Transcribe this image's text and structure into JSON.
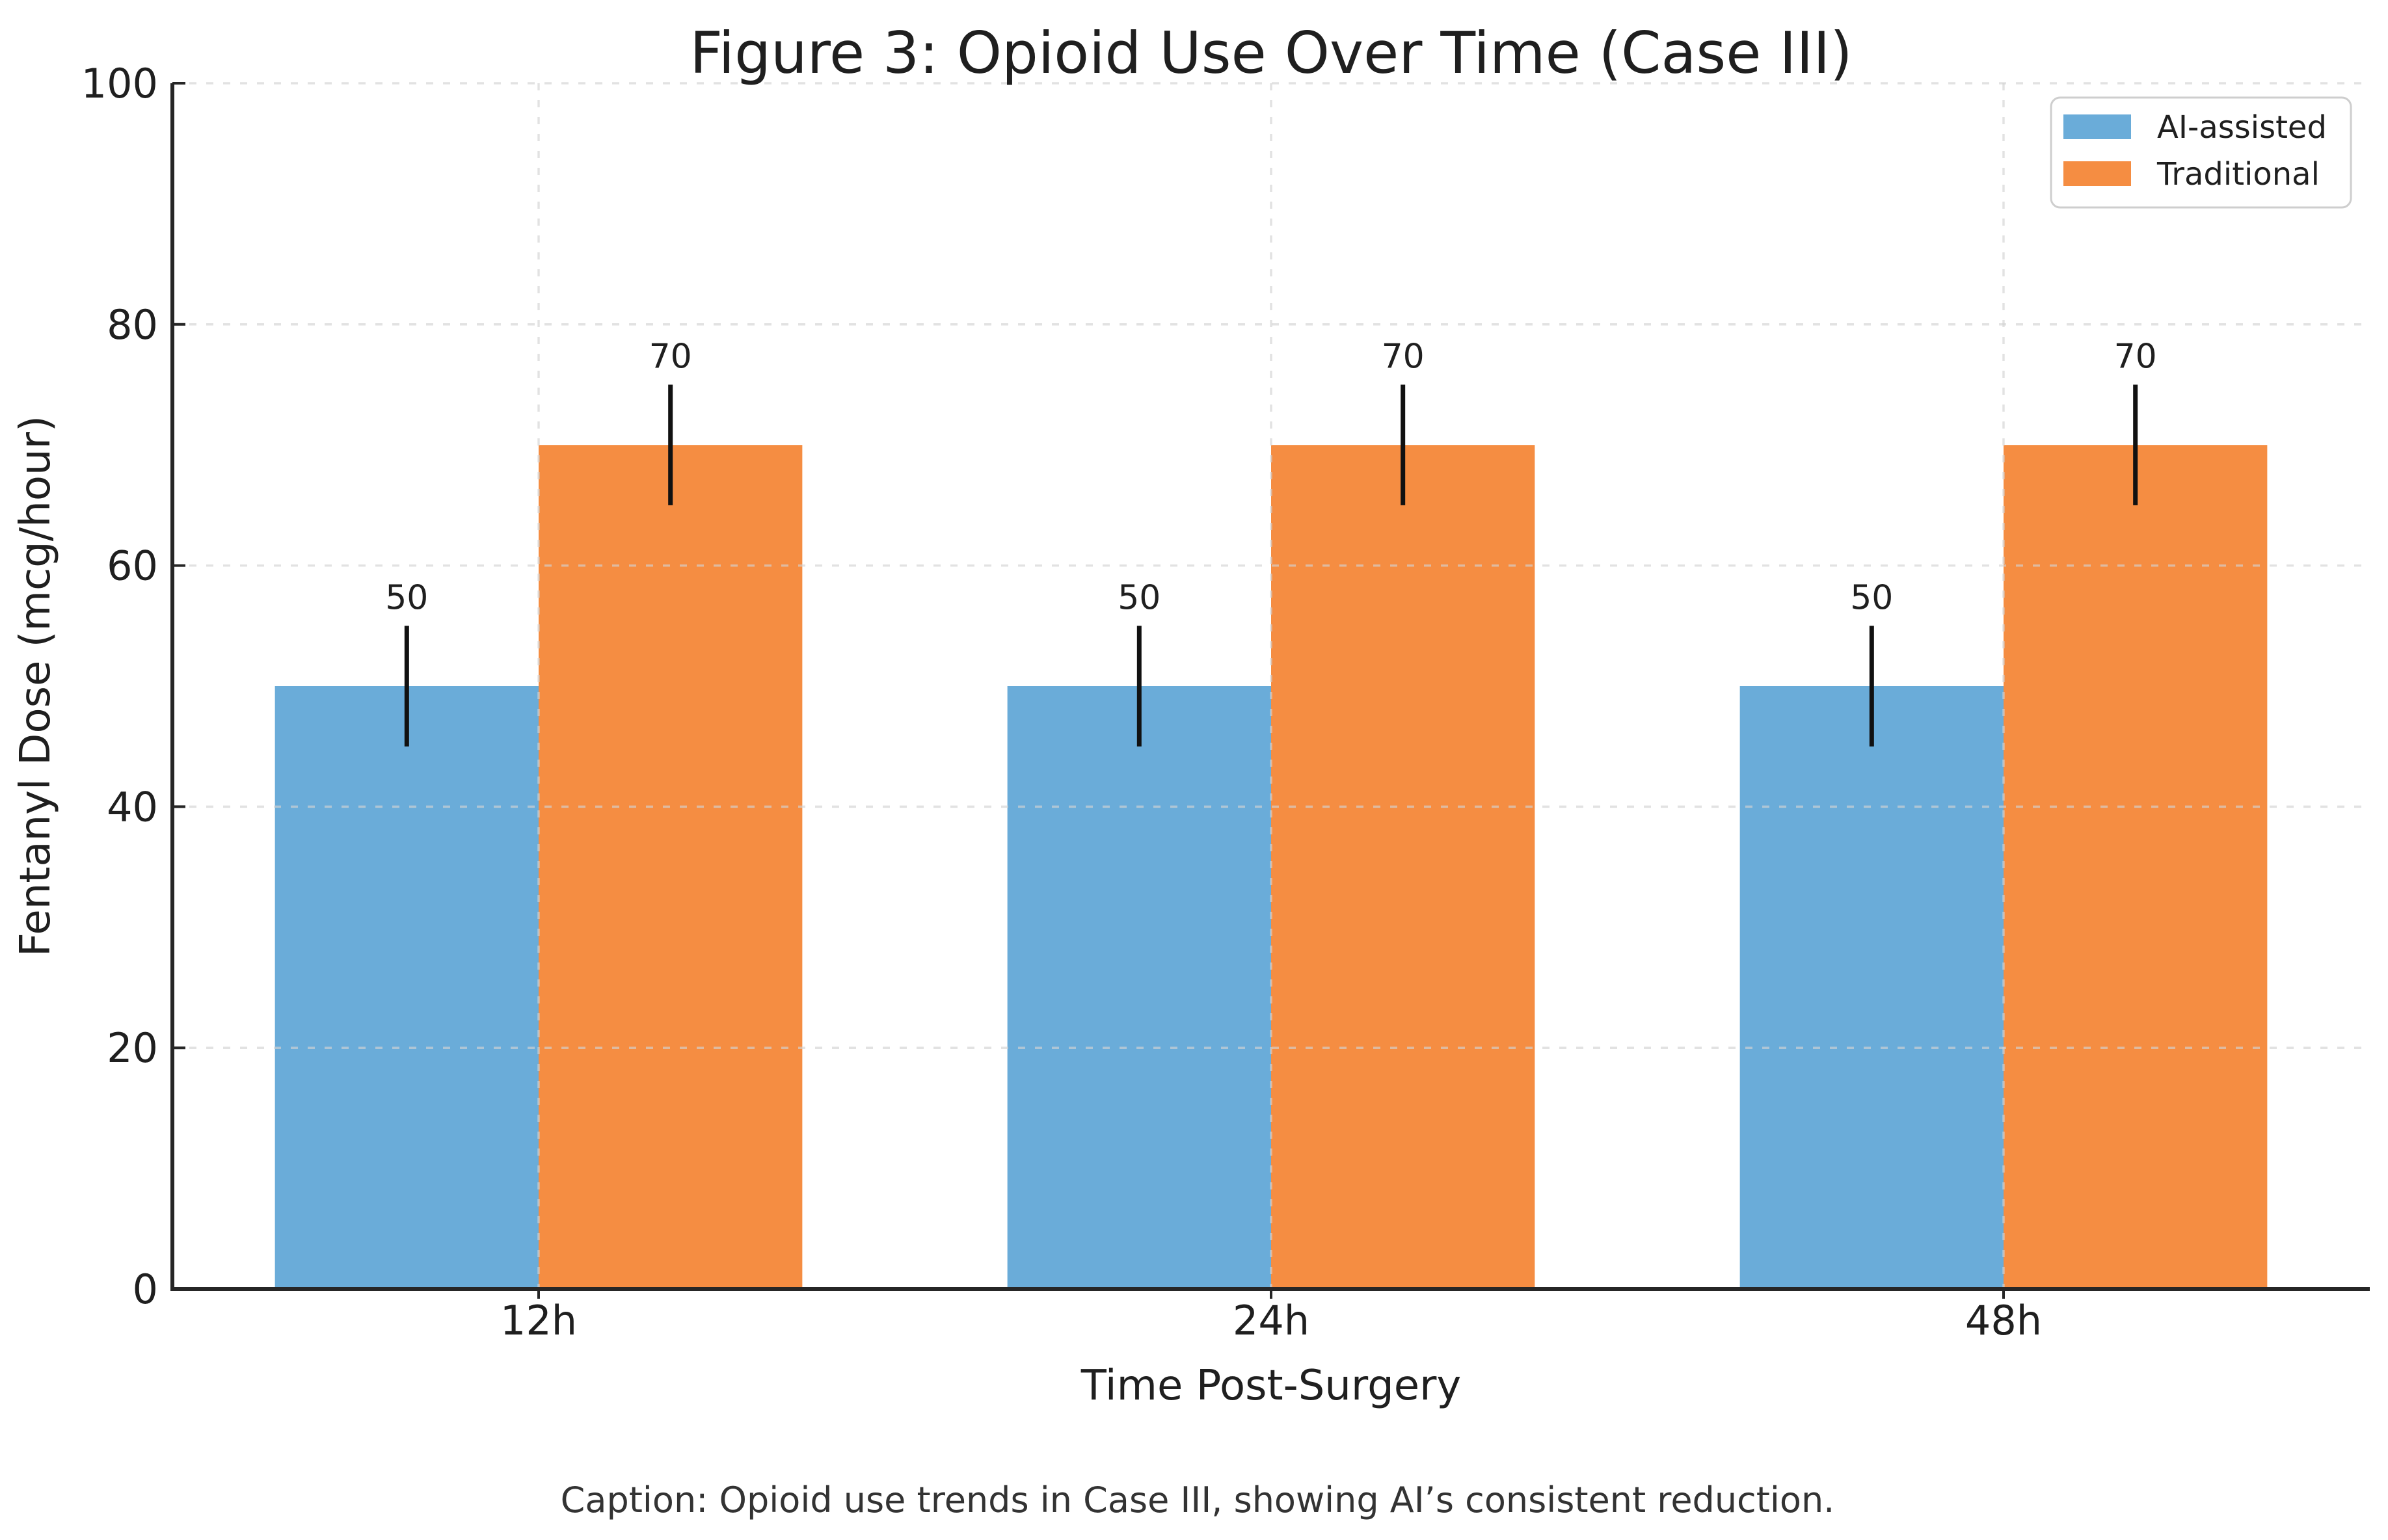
{
  "chart_data": {
    "type": "bar",
    "title": "Figure 3: Opioid Use Over Time (Case III)",
    "categories": [
      "12h",
      "24h",
      "48h"
    ],
    "series": [
      {
        "name": "AI-assisted",
        "color": "#6aacd9",
        "values": [
          50,
          50,
          50
        ],
        "errors": [
          5,
          5,
          5
        ]
      },
      {
        "name": "Traditional",
        "color": "#f58d42",
        "values": [
          70,
          70,
          70
        ],
        "errors": [
          5,
          5,
          5
        ]
      }
    ],
    "bar_value_labels": [
      [
        "50",
        "50",
        "50"
      ],
      [
        "70",
        "70",
        "70"
      ]
    ],
    "xlabel": "Time Post-Surgery",
    "ylabel": "Fentanyl Dose (mcg/hour)",
    "ylim": [
      0,
      100
    ],
    "yticks": [
      0,
      20,
      40,
      60,
      80,
      100
    ],
    "grid": "dashed",
    "legend": {
      "position": "upper right"
    },
    "caption": "Caption: Opioid use trends in Case III, showing AI’s consistent reduction.",
    "colors": {
      "error_bar": "#111111",
      "grid_line": "#d3d3d3",
      "spine": "#262626",
      "text": "#1f1f1f",
      "legend_border": "#cccccc",
      "legend_bg": "#ffffff"
    }
  }
}
